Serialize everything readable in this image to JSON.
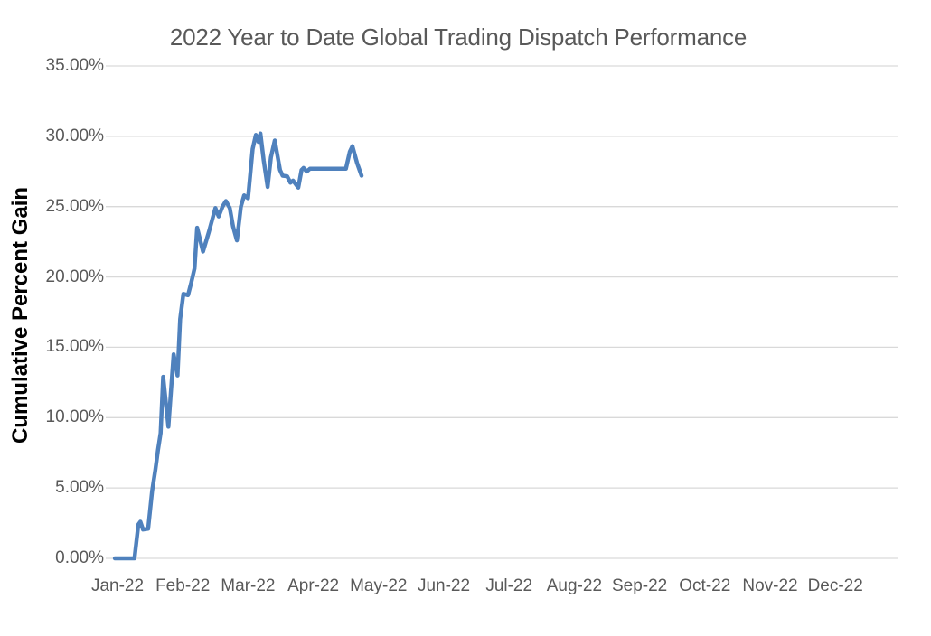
{
  "chart_data": {
    "type": "line",
    "title": "2022 Year to Date Global Trading Dispatch Performance",
    "xlabel": "",
    "ylabel": "Cumulative Percent Gain",
    "ylim": [
      0,
      35
    ],
    "y_tick_labels": [
      "0.00%",
      "5.00%",
      "10.00%",
      "15.00%",
      "20.00%",
      "25.00%",
      "30.00%",
      "35.00%"
    ],
    "x_tick_labels": [
      "Jan-22",
      "Feb-22",
      "Mar-22",
      "Apr-22",
      "May-22",
      "Jun-22",
      "Jul-22",
      "Aug-22",
      "Sep-22",
      "Oct-22",
      "Nov-22",
      "Dec-22"
    ],
    "grid": "horizontal",
    "legend": "none",
    "colors": {
      "line": "#4F81BD",
      "gridline": "#D9D9D9",
      "title_text": "#595959",
      "tick_text": "#595959",
      "axis_title_text": "#000000",
      "background": "#FFFFFF"
    },
    "series": [
      {
        "name": "Cumulative Percent Gain",
        "color": "#4F81BD",
        "x_unit": "months_after_Jan-22_tick",
        "y_unit": "percent",
        "points": [
          [
            -0.04,
            0.0
          ],
          [
            0.26,
            0.0
          ],
          [
            0.32,
            2.4
          ],
          [
            0.35,
            2.6
          ],
          [
            0.39,
            2.05
          ],
          [
            0.47,
            2.1
          ],
          [
            0.53,
            4.8
          ],
          [
            0.58,
            6.3
          ],
          [
            0.62,
            7.7
          ],
          [
            0.66,
            8.9
          ],
          [
            0.7,
            12.9
          ],
          [
            0.78,
            9.35
          ],
          [
            0.86,
            14.5
          ],
          [
            0.92,
            13.0
          ],
          [
            0.96,
            17.0
          ],
          [
            1.01,
            18.8
          ],
          [
            1.08,
            18.7
          ],
          [
            1.13,
            19.6
          ],
          [
            1.18,
            20.6
          ],
          [
            1.22,
            23.5
          ],
          [
            1.31,
            21.8
          ],
          [
            1.4,
            23.2
          ],
          [
            1.5,
            24.9
          ],
          [
            1.55,
            24.3
          ],
          [
            1.61,
            25.0
          ],
          [
            1.66,
            25.4
          ],
          [
            1.72,
            24.9
          ],
          [
            1.77,
            23.6
          ],
          [
            1.83,
            22.6
          ],
          [
            1.89,
            25.0
          ],
          [
            1.94,
            25.8
          ],
          [
            2.0,
            25.6
          ],
          [
            2.07,
            29.1
          ],
          [
            2.12,
            30.1
          ],
          [
            2.16,
            29.6
          ],
          [
            2.19,
            30.2
          ],
          [
            2.24,
            28.3
          ],
          [
            2.3,
            26.4
          ],
          [
            2.35,
            28.5
          ],
          [
            2.41,
            29.7
          ],
          [
            2.49,
            27.6
          ],
          [
            2.53,
            27.2
          ],
          [
            2.6,
            27.15
          ],
          [
            2.65,
            26.7
          ],
          [
            2.69,
            26.85
          ],
          [
            2.77,
            26.35
          ],
          [
            2.82,
            27.6
          ],
          [
            2.85,
            27.75
          ],
          [
            2.9,
            27.5
          ],
          [
            2.95,
            27.7
          ],
          [
            3.1,
            27.7
          ],
          [
            3.3,
            27.7
          ],
          [
            3.5,
            27.7
          ],
          [
            3.56,
            28.9
          ],
          [
            3.6,
            29.3
          ],
          [
            3.67,
            28.1
          ],
          [
            3.74,
            27.2
          ]
        ]
      }
    ]
  }
}
